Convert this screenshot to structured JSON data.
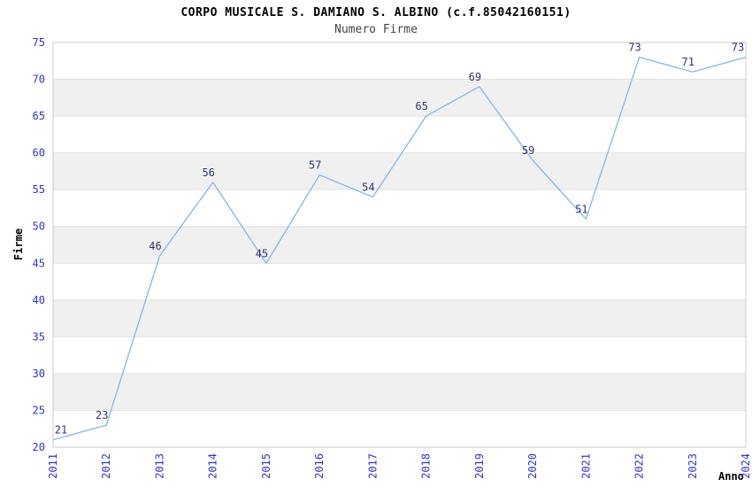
{
  "chart_data": {
    "type": "line",
    "title": "CORPO MUSICALE S. DAMIANO S. ALBINO (c.f.85042160151)",
    "subtitle": "Numero Firme",
    "xlabel": "Anno",
    "ylabel": "Firme",
    "categories": [
      "2011",
      "2012",
      "2013",
      "2014",
      "2015",
      "2016",
      "2017",
      "2018",
      "2019",
      "2020",
      "2021",
      "2022",
      "2023",
      "2024"
    ],
    "values": [
      21,
      23,
      46,
      56,
      45,
      57,
      54,
      65,
      69,
      59,
      51,
      73,
      71,
      73
    ],
    "ylim": [
      20,
      75
    ],
    "ytick_step": 5,
    "grid": "horizontal-alternating-bands",
    "legend": "none",
    "colors": {
      "line": "#86b4e7",
      "tick_labels": "#3333cc",
      "data_labels": "#333377",
      "band_gray": "#f0f0f0",
      "band_white": "#ffffff",
      "plot_border": "#cccccc",
      "gridline": "#e2e2e2",
      "title": "#000000",
      "subtitle": "#444444",
      "axis_title": "#000000"
    }
  }
}
